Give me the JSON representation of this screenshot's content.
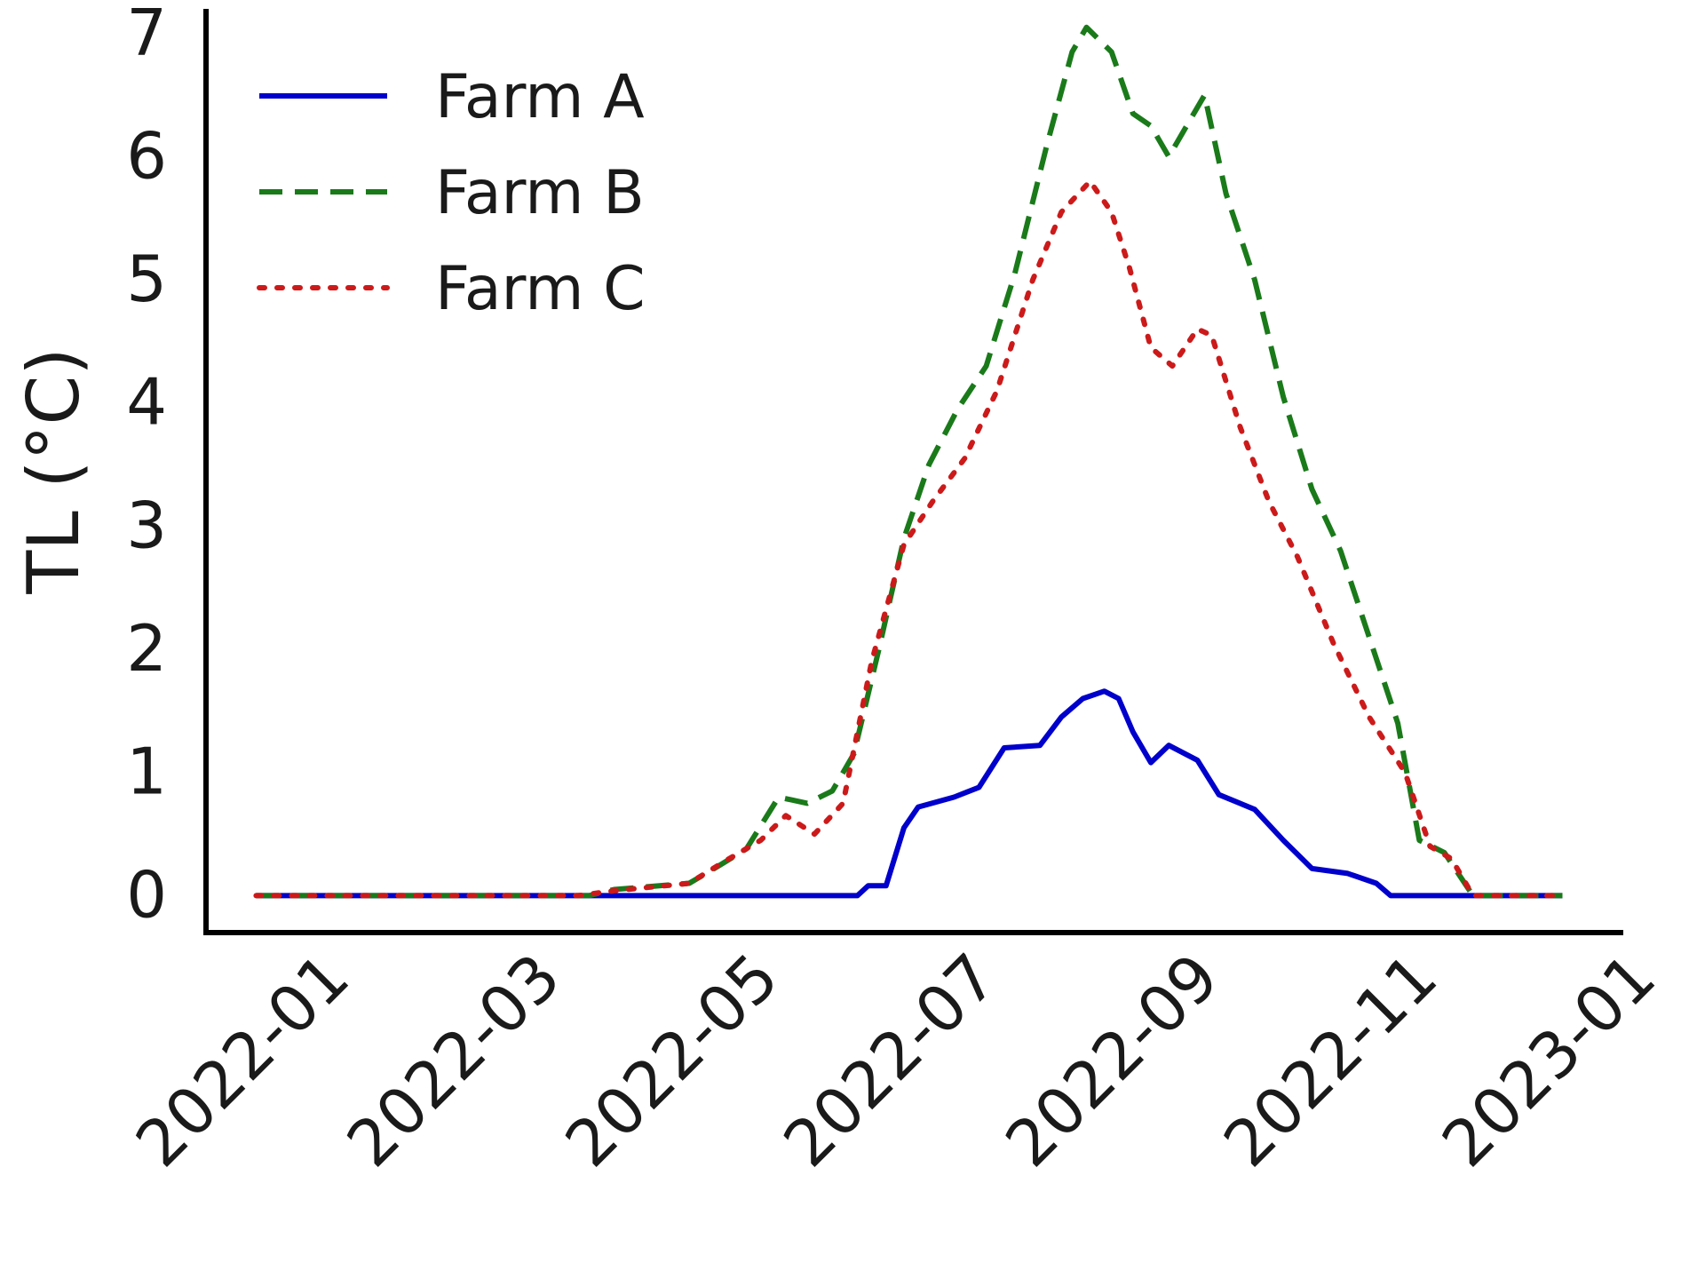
{
  "chart_data": {
    "type": "line",
    "title": "",
    "xlabel": "",
    "ylabel": "TL (°C)",
    "xlim": [
      "2021-12-01",
      "2023-01-01"
    ],
    "ylim": [
      -0.3,
      7.2
    ],
    "grid": false,
    "legend_position": "top-left",
    "x_ticks": [
      {
        "value": "2022-01-01",
        "label": "2022-01"
      },
      {
        "value": "2022-03-01",
        "label": "2022-03"
      },
      {
        "value": "2022-05-01",
        "label": "2022-05"
      },
      {
        "value": "2022-07-01",
        "label": "2022-07"
      },
      {
        "value": "2022-09-01",
        "label": "2022-09"
      },
      {
        "value": "2022-11-01",
        "label": "2022-11"
      },
      {
        "value": "2023-01-01",
        "label": "2023-01"
      }
    ],
    "y_ticks": [
      {
        "value": 0,
        "label": "0"
      },
      {
        "value": 1,
        "label": "1"
      },
      {
        "value": 2,
        "label": "2"
      },
      {
        "value": 3,
        "label": "3"
      },
      {
        "value": 4,
        "label": "4"
      },
      {
        "value": 5,
        "label": "5"
      },
      {
        "value": 6,
        "label": "6"
      },
      {
        "value": 7,
        "label": "7"
      }
    ],
    "series": [
      {
        "name": "Farm A",
        "color": "#0000cc",
        "style": "solid",
        "points": [
          [
            "2021-12-15",
            0
          ],
          [
            "2022-04-01",
            0
          ],
          [
            "2022-06-01",
            0
          ],
          [
            "2022-06-04",
            0.08
          ],
          [
            "2022-06-09",
            0.08
          ],
          [
            "2022-06-14",
            0.55
          ],
          [
            "2022-06-18",
            0.72
          ],
          [
            "2022-06-28",
            0.8
          ],
          [
            "2022-07-05",
            0.88
          ],
          [
            "2022-07-12",
            1.2
          ],
          [
            "2022-07-22",
            1.22
          ],
          [
            "2022-07-28",
            1.45
          ],
          [
            "2022-08-03",
            1.6
          ],
          [
            "2022-08-09",
            1.66
          ],
          [
            "2022-08-13",
            1.6
          ],
          [
            "2022-08-17",
            1.33
          ],
          [
            "2022-08-22",
            1.08
          ],
          [
            "2022-08-27",
            1.22
          ],
          [
            "2022-09-04",
            1.1
          ],
          [
            "2022-09-10",
            0.82
          ],
          [
            "2022-09-20",
            0.7
          ],
          [
            "2022-09-28",
            0.45
          ],
          [
            "2022-10-06",
            0.22
          ],
          [
            "2022-10-16",
            0.18
          ],
          [
            "2022-10-24",
            0.1
          ],
          [
            "2022-10-28",
            0
          ],
          [
            "2022-12-15",
            0
          ]
        ]
      },
      {
        "name": "Farm B",
        "color": "#1a7a1a",
        "style": "dashed",
        "points": [
          [
            "2021-12-15",
            0
          ],
          [
            "2022-03-18",
            0
          ],
          [
            "2022-03-25",
            0.05
          ],
          [
            "2022-04-15",
            0.1
          ],
          [
            "2022-04-22",
            0.22
          ],
          [
            "2022-05-01",
            0.38
          ],
          [
            "2022-05-10",
            0.8
          ],
          [
            "2022-05-18",
            0.75
          ],
          [
            "2022-05-25",
            0.85
          ],
          [
            "2022-05-31",
            1.15
          ],
          [
            "2022-06-07",
            2.0
          ],
          [
            "2022-06-14",
            2.9
          ],
          [
            "2022-06-21",
            3.5
          ],
          [
            "2022-06-29",
            3.95
          ],
          [
            "2022-07-07",
            4.3
          ],
          [
            "2022-07-15",
            5.05
          ],
          [
            "2022-07-24",
            6.1
          ],
          [
            "2022-07-31",
            6.85
          ],
          [
            "2022-08-04",
            7.05
          ],
          [
            "2022-08-11",
            6.85
          ],
          [
            "2022-08-17",
            6.35
          ],
          [
            "2022-08-22",
            6.25
          ],
          [
            "2022-08-27",
            6.0
          ],
          [
            "2022-09-02",
            6.3
          ],
          [
            "2022-09-06",
            6.5
          ],
          [
            "2022-09-12",
            5.7
          ],
          [
            "2022-09-20",
            5.0
          ],
          [
            "2022-09-28",
            4.05
          ],
          [
            "2022-10-06",
            3.3
          ],
          [
            "2022-10-14",
            2.8
          ],
          [
            "2022-10-22",
            2.1
          ],
          [
            "2022-10-30",
            1.4
          ],
          [
            "2022-11-05",
            0.45
          ],
          [
            "2022-11-12",
            0.35
          ],
          [
            "2022-11-20",
            0
          ],
          [
            "2022-12-15",
            0
          ]
        ]
      },
      {
        "name": "Farm C",
        "color": "#cc1a1a",
        "style": "dotted",
        "points": [
          [
            "2021-12-15",
            0
          ],
          [
            "2022-03-15",
            0
          ],
          [
            "2022-03-25",
            0.04
          ],
          [
            "2022-04-15",
            0.1
          ],
          [
            "2022-04-25",
            0.28
          ],
          [
            "2022-05-05",
            0.45
          ],
          [
            "2022-05-12",
            0.65
          ],
          [
            "2022-05-20",
            0.5
          ],
          [
            "2022-05-28",
            0.75
          ],
          [
            "2022-06-05",
            1.9
          ],
          [
            "2022-06-14",
            2.85
          ],
          [
            "2022-06-22",
            3.2
          ],
          [
            "2022-07-01",
            3.55
          ],
          [
            "2022-07-10",
            4.1
          ],
          [
            "2022-07-20",
            5.0
          ],
          [
            "2022-07-28",
            5.55
          ],
          [
            "2022-08-05",
            5.8
          ],
          [
            "2022-08-11",
            5.55
          ],
          [
            "2022-08-16",
            5.1
          ],
          [
            "2022-08-22",
            4.45
          ],
          [
            "2022-08-28",
            4.3
          ],
          [
            "2022-09-04",
            4.6
          ],
          [
            "2022-09-08",
            4.55
          ],
          [
            "2022-09-16",
            3.8
          ],
          [
            "2022-09-24",
            3.2
          ],
          [
            "2022-10-02",
            2.75
          ],
          [
            "2022-10-12",
            2.05
          ],
          [
            "2022-10-22",
            1.45
          ],
          [
            "2022-11-01",
            1.0
          ],
          [
            "2022-11-08",
            0.4
          ],
          [
            "2022-11-14",
            0.3
          ],
          [
            "2022-11-20",
            0
          ],
          [
            "2022-12-15",
            0
          ]
        ]
      }
    ]
  }
}
